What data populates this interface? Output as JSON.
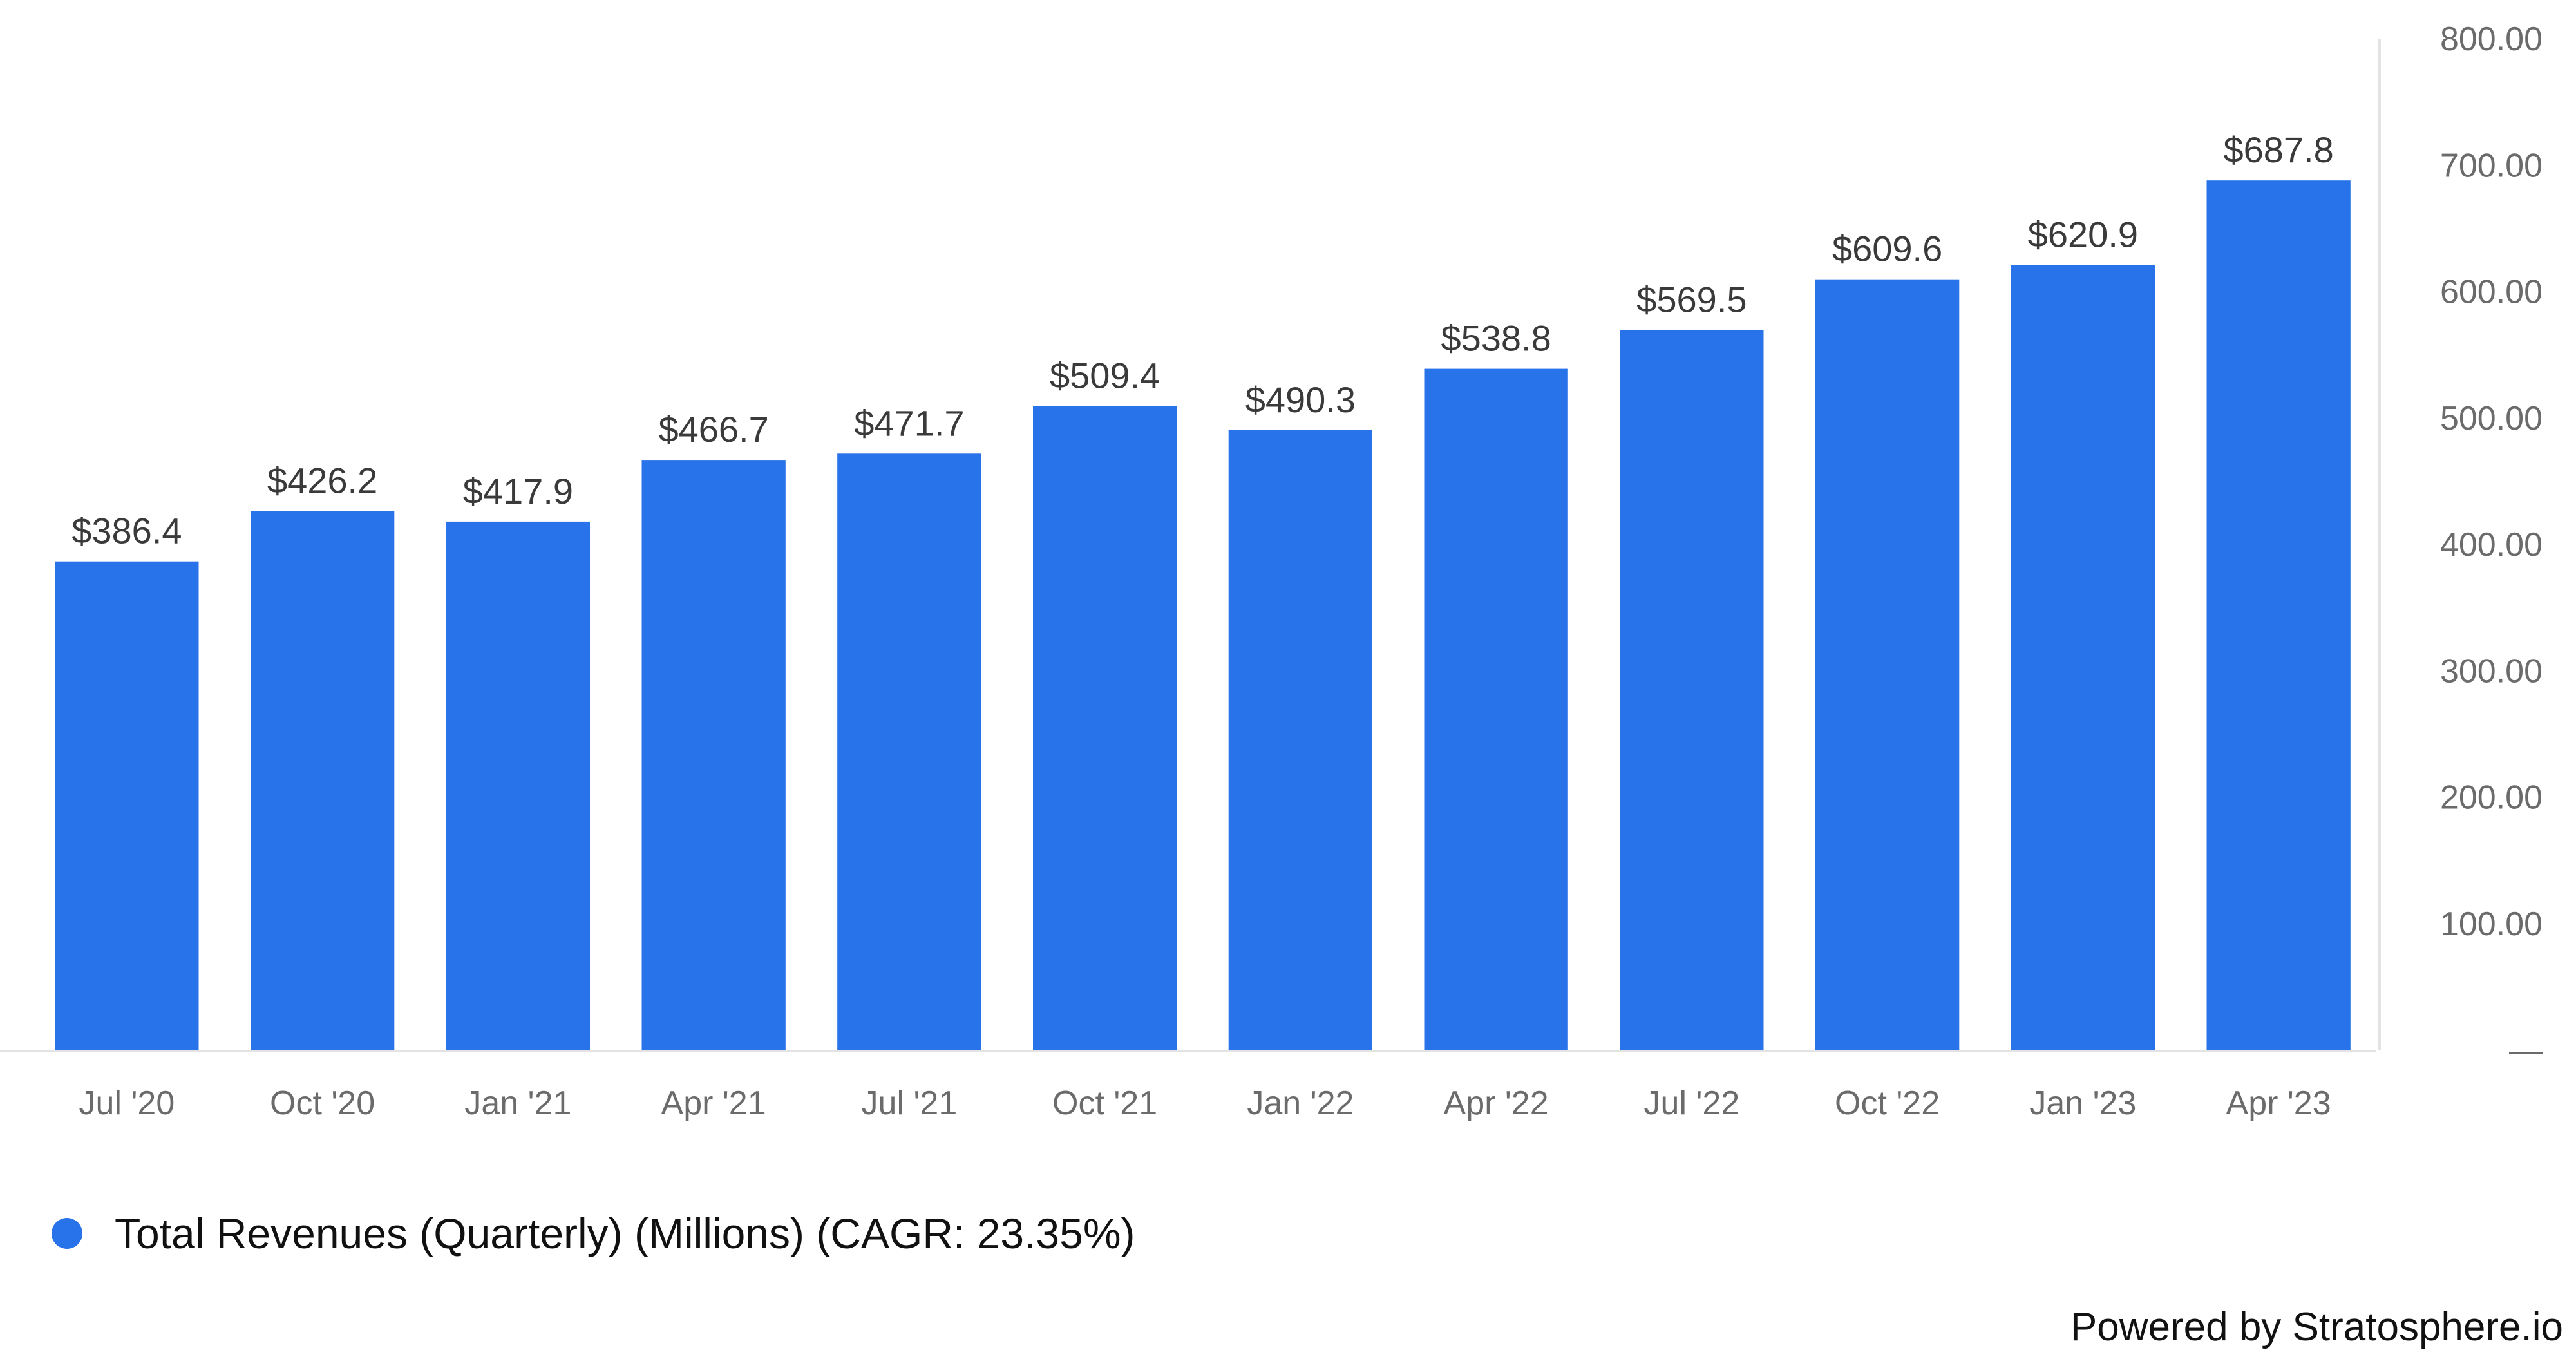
{
  "chart_data": {
    "type": "bar",
    "categories": [
      "Jul '20",
      "Oct '20",
      "Jan '21",
      "Apr '21",
      "Jul '21",
      "Oct '21",
      "Jan '22",
      "Apr '22",
      "Jul '22",
      "Oct '22",
      "Jan '23",
      "Apr '23"
    ],
    "series": [
      {
        "name": "Total Revenues (Quarterly) (Millions) (CAGR: 23.35%)",
        "values": [
          386.4,
          426.2,
          417.9,
          466.7,
          471.7,
          509.4,
          490.3,
          538.8,
          569.5,
          609.6,
          620.9,
          687.8
        ],
        "labels": [
          "$386.4",
          "$426.2",
          "$417.9",
          "$466.7",
          "$471.7",
          "$509.4",
          "$490.3",
          "$538.8",
          "$569.5",
          "$609.6",
          "$620.9",
          "$687.8"
        ],
        "color": "#2872ea"
      }
    ],
    "y_axis": {
      "position": "right",
      "ylim": [
        0,
        800
      ],
      "ticks": [
        0,
        100,
        200,
        300,
        400,
        500,
        600,
        700,
        800
      ],
      "tick_labels": [
        "—",
        "100.00",
        "200.00",
        "300.00",
        "400.00",
        "500.00",
        "600.00",
        "700.00",
        "800.00"
      ]
    },
    "grid": false,
    "legend_position": "bottom-left"
  },
  "legend": {
    "label": "Total Revenues (Quarterly) (Millions) (CAGR: 23.35%)",
    "color": "#2872ea"
  },
  "footer": {
    "text": "Powered by Stratosphere.io"
  }
}
